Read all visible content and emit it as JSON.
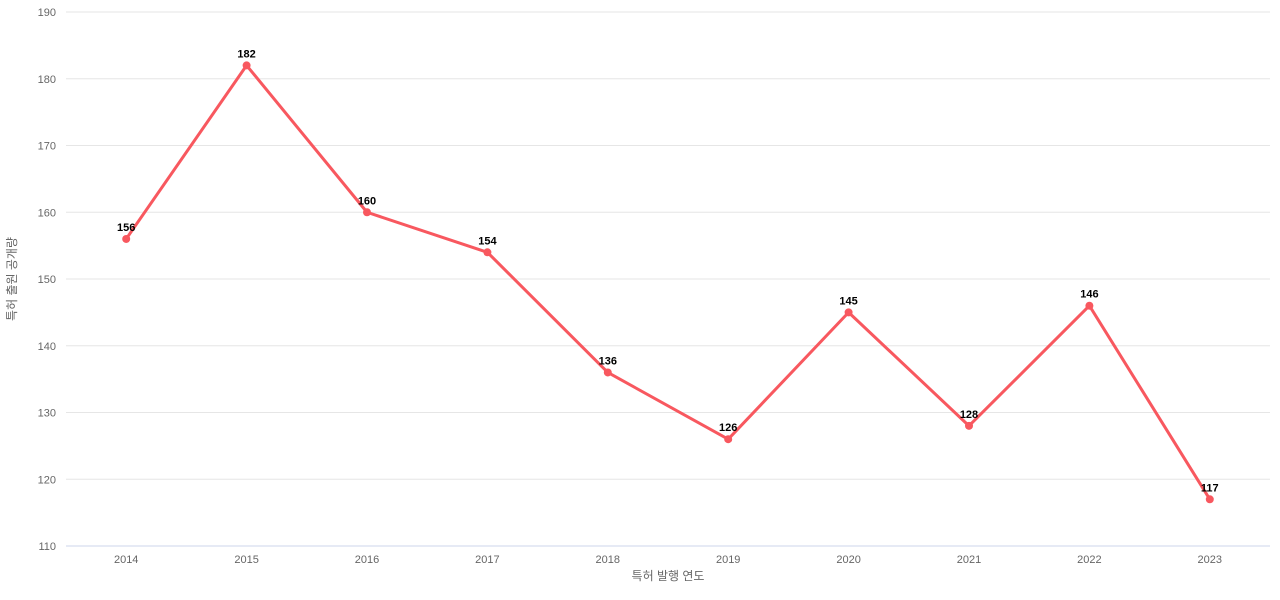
{
  "chart_data": {
    "type": "line",
    "title": "",
    "xlabel": "특허 발행 연도",
    "ylabel": "특허 출원 공개량",
    "categories": [
      "2014",
      "2015",
      "2016",
      "2017",
      "2018",
      "2019",
      "2020",
      "2021",
      "2022",
      "2023"
    ],
    "values": [
      156,
      182,
      160,
      154,
      136,
      126,
      145,
      128,
      146,
      117
    ],
    "data_labels": [
      "156",
      "182",
      "160",
      "154",
      "136",
      "126",
      "145",
      "128",
      "146",
      "117"
    ],
    "ylim": [
      110,
      190
    ],
    "ytick_step": 10,
    "ytick_labels": [
      "110",
      "120",
      "130",
      "140",
      "150",
      "160",
      "170",
      "180",
      "190"
    ],
    "grid": "horizontal",
    "legend": "none",
    "marker": "circle",
    "colors": {
      "line": "#F8585F",
      "marker": "#F8585F",
      "gridline": "#E6E6E6",
      "axis_line": "#CCD6EB",
      "tick_label": "#666666",
      "axis_title": "#666666",
      "data_label": "#000000",
      "background": "#FFFFFF"
    }
  }
}
